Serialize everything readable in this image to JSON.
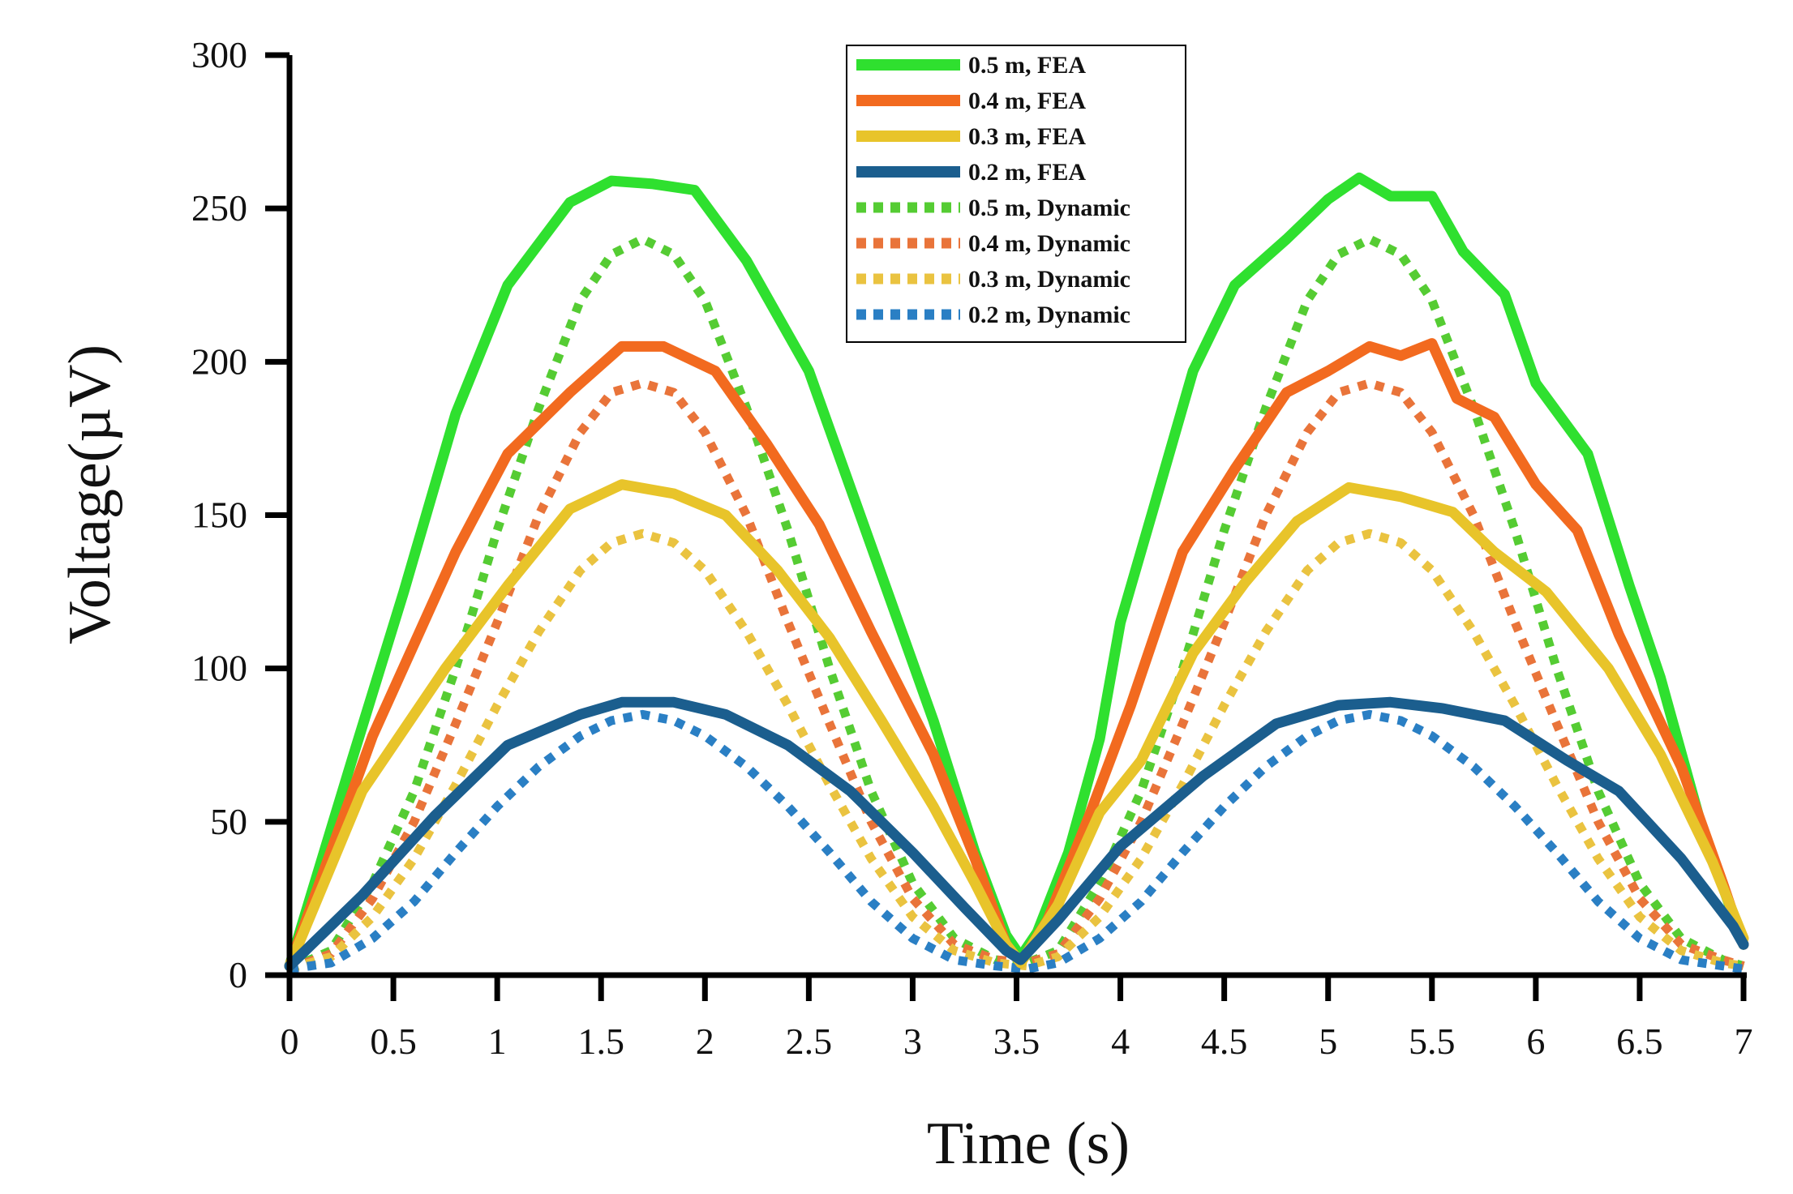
{
  "chart_data": {
    "type": "line",
    "title": "",
    "xlabel": "Time (s)",
    "ylabel": "Voltage(µV)",
    "xlim": [
      0,
      7
    ],
    "ylim": [
      0,
      300
    ],
    "grid": false,
    "legend_position": "top-center",
    "x_ticks": [
      0,
      0.5,
      1,
      1.5,
      2,
      2.5,
      3,
      3.5,
      4,
      4.5,
      5,
      5.5,
      6,
      6.5,
      7
    ],
    "x_tick_labels": [
      "0",
      "0.5",
      "1",
      "1.5",
      "2",
      "2.5",
      "3",
      "3.5",
      "4",
      "4.5",
      "5",
      "5.5",
      "6",
      "6.5",
      "7"
    ],
    "y_ticks": [
      0,
      50,
      100,
      150,
      200,
      250,
      300
    ],
    "y_tick_labels": [
      "0",
      "50",
      "100",
      "150",
      "200",
      "250",
      "300"
    ],
    "series": [
      {
        "name": "0.5 m, FEA",
        "color": "#2fe02f",
        "style": "solid",
        "points": [
          [
            0,
            3
          ],
          [
            0.3,
            70
          ],
          [
            0.55,
            125
          ],
          [
            0.8,
            183
          ],
          [
            1.05,
            225
          ],
          [
            1.35,
            252
          ],
          [
            1.55,
            259
          ],
          [
            1.75,
            258
          ],
          [
            1.95,
            256
          ],
          [
            2.2,
            233
          ],
          [
            2.5,
            197
          ],
          [
            2.8,
            140
          ],
          [
            3.1,
            83
          ],
          [
            3.3,
            40
          ],
          [
            3.45,
            13
          ],
          [
            3.52,
            6
          ],
          [
            3.6,
            14
          ],
          [
            3.75,
            40
          ],
          [
            3.9,
            77
          ],
          [
            4,
            115
          ],
          [
            4.15,
            150
          ],
          [
            4.35,
            197
          ],
          [
            4.55,
            225
          ],
          [
            4.8,
            240
          ],
          [
            5,
            253
          ],
          [
            5.15,
            260
          ],
          [
            5.3,
            254
          ],
          [
            5.5,
            254
          ],
          [
            5.65,
            236
          ],
          [
            5.85,
            222
          ],
          [
            6,
            193
          ],
          [
            6.25,
            170
          ],
          [
            6.45,
            127
          ],
          [
            6.6,
            97
          ],
          [
            6.8,
            48
          ],
          [
            7,
            10
          ]
        ]
      },
      {
        "name": "0.4 m, FEA",
        "color": "#f26a1f",
        "style": "solid",
        "points": [
          [
            0,
            3
          ],
          [
            0.4,
            78
          ],
          [
            0.8,
            138
          ],
          [
            1.05,
            170
          ],
          [
            1.35,
            190
          ],
          [
            1.6,
            205
          ],
          [
            1.8,
            205
          ],
          [
            2.05,
            197
          ],
          [
            2.3,
            173
          ],
          [
            2.55,
            147
          ],
          [
            2.8,
            112
          ],
          [
            3.1,
            72
          ],
          [
            3.3,
            38
          ],
          [
            3.45,
            10
          ],
          [
            3.52,
            4
          ],
          [
            3.65,
            18
          ],
          [
            3.85,
            52
          ],
          [
            4.05,
            88
          ],
          [
            4.3,
            138
          ],
          [
            4.55,
            165
          ],
          [
            4.8,
            190
          ],
          [
            5,
            197
          ],
          [
            5.2,
            205
          ],
          [
            5.35,
            202
          ],
          [
            5.5,
            206
          ],
          [
            5.62,
            188
          ],
          [
            5.8,
            182
          ],
          [
            6,
            160
          ],
          [
            6.2,
            145
          ],
          [
            6.4,
            111
          ],
          [
            6.7,
            68
          ],
          [
            6.9,
            30
          ],
          [
            7,
            10
          ]
        ]
      },
      {
        "name": "0.3 m, FEA",
        "color": "#e8c42a",
        "style": "solid",
        "points": [
          [
            0,
            3
          ],
          [
            0.35,
            60
          ],
          [
            0.75,
            100
          ],
          [
            1.05,
            127
          ],
          [
            1.35,
            152
          ],
          [
            1.6,
            160
          ],
          [
            1.85,
            157
          ],
          [
            2.1,
            150
          ],
          [
            2.35,
            132
          ],
          [
            2.6,
            110
          ],
          [
            2.85,
            83
          ],
          [
            3.1,
            55
          ],
          [
            3.3,
            30
          ],
          [
            3.45,
            10
          ],
          [
            3.52,
            4
          ],
          [
            3.7,
            23
          ],
          [
            3.9,
            53
          ],
          [
            4.1,
            70
          ],
          [
            4.35,
            105
          ],
          [
            4.6,
            128
          ],
          [
            4.85,
            148
          ],
          [
            5.1,
            159
          ],
          [
            5.35,
            156
          ],
          [
            5.6,
            151
          ],
          [
            5.8,
            138
          ],
          [
            6.05,
            125
          ],
          [
            6.35,
            100
          ],
          [
            6.6,
            72
          ],
          [
            6.85,
            37
          ],
          [
            7,
            12
          ]
        ]
      },
      {
        "name": "0.2 m, FEA",
        "color": "#1b5e8e",
        "style": "solid",
        "points": [
          [
            0,
            3
          ],
          [
            0.35,
            26
          ],
          [
            0.7,
            52
          ],
          [
            1.05,
            75
          ],
          [
            1.4,
            85
          ],
          [
            1.6,
            89
          ],
          [
            1.85,
            89
          ],
          [
            2.1,
            85
          ],
          [
            2.4,
            75
          ],
          [
            2.7,
            60
          ],
          [
            3,
            40
          ],
          [
            3.25,
            22
          ],
          [
            3.45,
            8
          ],
          [
            3.52,
            5
          ],
          [
            3.7,
            18
          ],
          [
            4,
            42
          ],
          [
            4.4,
            65
          ],
          [
            4.75,
            82
          ],
          [
            5.05,
            88
          ],
          [
            5.3,
            89
          ],
          [
            5.55,
            87
          ],
          [
            5.85,
            83
          ],
          [
            6.15,
            70
          ],
          [
            6.4,
            60
          ],
          [
            6.7,
            38
          ],
          [
            6.95,
            16
          ],
          [
            7,
            10
          ]
        ]
      },
      {
        "name": "0.5 m, Dynamic",
        "color": "#55cc33",
        "style": "dotted",
        "points": [
          [
            0,
            2
          ],
          [
            0.2,
            8
          ],
          [
            0.4,
            30
          ],
          [
            0.6,
            60
          ],
          [
            0.8,
            100
          ],
          [
            1,
            145
          ],
          [
            1.2,
            185
          ],
          [
            1.4,
            220
          ],
          [
            1.55,
            235
          ],
          [
            1.7,
            240
          ],
          [
            1.85,
            235
          ],
          [
            2,
            220
          ],
          [
            2.2,
            185
          ],
          [
            2.4,
            145
          ],
          [
            2.6,
            100
          ],
          [
            2.8,
            60
          ],
          [
            3,
            30
          ],
          [
            3.2,
            12
          ],
          [
            3.4,
            5
          ],
          [
            3.55,
            4
          ],
          [
            3.7,
            8
          ],
          [
            3.9,
            30
          ],
          [
            4.1,
            60
          ],
          [
            4.3,
            100
          ],
          [
            4.5,
            145
          ],
          [
            4.7,
            185
          ],
          [
            4.9,
            220
          ],
          [
            5.05,
            235
          ],
          [
            5.2,
            240
          ],
          [
            5.35,
            235
          ],
          [
            5.5,
            220
          ],
          [
            5.7,
            185
          ],
          [
            5.9,
            145
          ],
          [
            6.1,
            100
          ],
          [
            6.3,
            60
          ],
          [
            6.5,
            30
          ],
          [
            6.7,
            12
          ],
          [
            6.9,
            5
          ],
          [
            7,
            3
          ]
        ]
      },
      {
        "name": "0.4 m, Dynamic",
        "color": "#e9743a",
        "style": "dotted",
        "points": [
          [
            0,
            2
          ],
          [
            0.2,
            7
          ],
          [
            0.4,
            25
          ],
          [
            0.6,
            50
          ],
          [
            0.8,
            82
          ],
          [
            1,
            115
          ],
          [
            1.2,
            150
          ],
          [
            1.4,
            177
          ],
          [
            1.55,
            190
          ],
          [
            1.7,
            193
          ],
          [
            1.85,
            190
          ],
          [
            2,
            177
          ],
          [
            2.2,
            150
          ],
          [
            2.4,
            115
          ],
          [
            2.6,
            82
          ],
          [
            2.8,
            50
          ],
          [
            3,
            25
          ],
          [
            3.2,
            10
          ],
          [
            3.4,
            5
          ],
          [
            3.55,
            4
          ],
          [
            3.7,
            7
          ],
          [
            3.9,
            25
          ],
          [
            4.1,
            50
          ],
          [
            4.3,
            82
          ],
          [
            4.5,
            115
          ],
          [
            4.7,
            150
          ],
          [
            4.9,
            177
          ],
          [
            5.05,
            190
          ],
          [
            5.2,
            193
          ],
          [
            5.35,
            190
          ],
          [
            5.5,
            177
          ],
          [
            5.7,
            150
          ],
          [
            5.9,
            115
          ],
          [
            6.1,
            82
          ],
          [
            6.3,
            50
          ],
          [
            6.5,
            25
          ],
          [
            6.7,
            10
          ],
          [
            6.9,
            5
          ],
          [
            7,
            3
          ]
        ]
      },
      {
        "name": "0.3 m, Dynamic",
        "color": "#eac340",
        "style": "dotted",
        "points": [
          [
            0,
            2
          ],
          [
            0.2,
            6
          ],
          [
            0.4,
            19
          ],
          [
            0.6,
            38
          ],
          [
            0.8,
            62
          ],
          [
            1,
            88
          ],
          [
            1.2,
            112
          ],
          [
            1.4,
            132
          ],
          [
            1.55,
            141
          ],
          [
            1.7,
            144
          ],
          [
            1.85,
            141
          ],
          [
            2,
            132
          ],
          [
            2.2,
            112
          ],
          [
            2.4,
            88
          ],
          [
            2.6,
            62
          ],
          [
            2.8,
            38
          ],
          [
            3,
            19
          ],
          [
            3.2,
            8
          ],
          [
            3.4,
            4
          ],
          [
            3.55,
            3
          ],
          [
            3.7,
            6
          ],
          [
            3.9,
            19
          ],
          [
            4.1,
            38
          ],
          [
            4.3,
            62
          ],
          [
            4.5,
            88
          ],
          [
            4.7,
            112
          ],
          [
            4.9,
            132
          ],
          [
            5.05,
            141
          ],
          [
            5.2,
            144
          ],
          [
            5.35,
            141
          ],
          [
            5.5,
            132
          ],
          [
            5.7,
            112
          ],
          [
            5.9,
            88
          ],
          [
            6.1,
            62
          ],
          [
            6.3,
            38
          ],
          [
            6.5,
            19
          ],
          [
            6.7,
            8
          ],
          [
            6.9,
            4
          ],
          [
            7,
            3
          ]
        ]
      },
      {
        "name": "0.2 m, Dynamic",
        "color": "#2a7fc4",
        "style": "dotted",
        "points": [
          [
            0,
            2
          ],
          [
            0.2,
            4
          ],
          [
            0.4,
            12
          ],
          [
            0.6,
            24
          ],
          [
            0.8,
            40
          ],
          [
            1,
            55
          ],
          [
            1.2,
            68
          ],
          [
            1.4,
            78
          ],
          [
            1.55,
            83
          ],
          [
            1.7,
            85
          ],
          [
            1.85,
            83
          ],
          [
            2,
            78
          ],
          [
            2.2,
            68
          ],
          [
            2.4,
            55
          ],
          [
            2.6,
            40
          ],
          [
            2.8,
            24
          ],
          [
            3,
            12
          ],
          [
            3.2,
            5
          ],
          [
            3.4,
            3
          ],
          [
            3.55,
            2
          ],
          [
            3.7,
            4
          ],
          [
            3.9,
            12
          ],
          [
            4.1,
            24
          ],
          [
            4.3,
            40
          ],
          [
            4.5,
            55
          ],
          [
            4.7,
            68
          ],
          [
            4.9,
            78
          ],
          [
            5.05,
            83
          ],
          [
            5.2,
            85
          ],
          [
            5.35,
            83
          ],
          [
            5.5,
            78
          ],
          [
            5.7,
            68
          ],
          [
            5.9,
            55
          ],
          [
            6.1,
            40
          ],
          [
            6.3,
            24
          ],
          [
            6.5,
            12
          ],
          [
            6.7,
            5
          ],
          [
            6.9,
            3
          ],
          [
            7,
            2
          ]
        ]
      }
    ]
  }
}
